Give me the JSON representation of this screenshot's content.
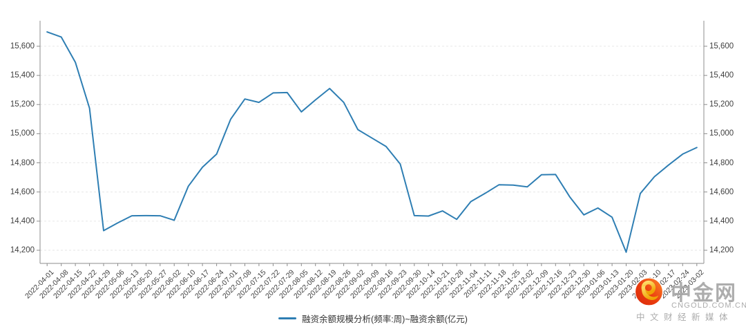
{
  "page": {
    "background": "#ffffff"
  },
  "legend": {
    "label": "融资余额规模分析(频率:周)~融资余额(亿元)"
  },
  "watermark": {
    "brand": "中金网",
    "domain": "CNGOLD.COM.CN",
    "slogan": "中文财经新媒体",
    "text_color": "#a7a7a7",
    "logo_circle_dark": "#d9290b",
    "logo_circle_light": "#ff8a2b",
    "logo_swirl_dark": "#efa303",
    "logo_swirl_light": "#ffdf6e"
  },
  "chart_data": {
    "type": "line",
    "title": "",
    "xlabel": "",
    "ylabel": "",
    "series_name": "融资余额规模分析(频率:周)~融资余额(亿元)",
    "categories": [
      "2022-04-01",
      "2022-04-08",
      "2022-04-15",
      "2022-04-22",
      "2022-04-29",
      "2022-05-06",
      "2022-05-13",
      "2022-05-20",
      "2022-05-27",
      "2022-06-02",
      "2022-06-10",
      "2022-06-17",
      "2022-06-24",
      "2022-07-01",
      "2022-07-08",
      "2022-07-15",
      "2022-07-22",
      "2022-07-29",
      "2022-08-05",
      "2022-08-12",
      "2022-08-19",
      "2022-08-26",
      "2022-09-02",
      "2022-09-09",
      "2022-09-16",
      "2022-09-23",
      "2022-09-30",
      "2022-10-14",
      "2022-10-21",
      "2022-10-28",
      "2022-11-04",
      "2022-11-11",
      "2022-11-18",
      "2022-11-25",
      "2022-12-02",
      "2022-12-09",
      "2022-12-16",
      "2022-12-23",
      "2022-12-30",
      "2023-01-06",
      "2023-01-13",
      "2023-01-20",
      "2023-02-03",
      "2023-02-10",
      "2023-02-17",
      "2023-02-24",
      "2023-03-02"
    ],
    "values": [
      15698,
      15663,
      15490,
      15175,
      14335,
      14388,
      14437,
      14438,
      14437,
      14406,
      14640,
      14770,
      14860,
      15100,
      15238,
      15215,
      15280,
      15282,
      15150,
      15232,
      15310,
      15215,
      15028,
      14970,
      14912,
      14792,
      14438,
      14435,
      14470,
      14412,
      14534,
      14590,
      14650,
      14647,
      14635,
      14718,
      14720,
      14567,
      14443,
      14490,
      14427,
      14187,
      14590,
      14705,
      14785,
      14860,
      14905
    ],
    "y_ticks": [
      14200,
      14400,
      14600,
      14800,
      15000,
      15200,
      15400,
      15600
    ],
    "ylim": [
      14110,
      15775
    ],
    "grid": "horizontal-dashed",
    "legend_position": "bottom-center",
    "line_color": "#2e7eb3",
    "axis_color": "#8c8c8c",
    "grid_color": "#e6e6e6",
    "tick_label_color": "#3f3f3f"
  }
}
